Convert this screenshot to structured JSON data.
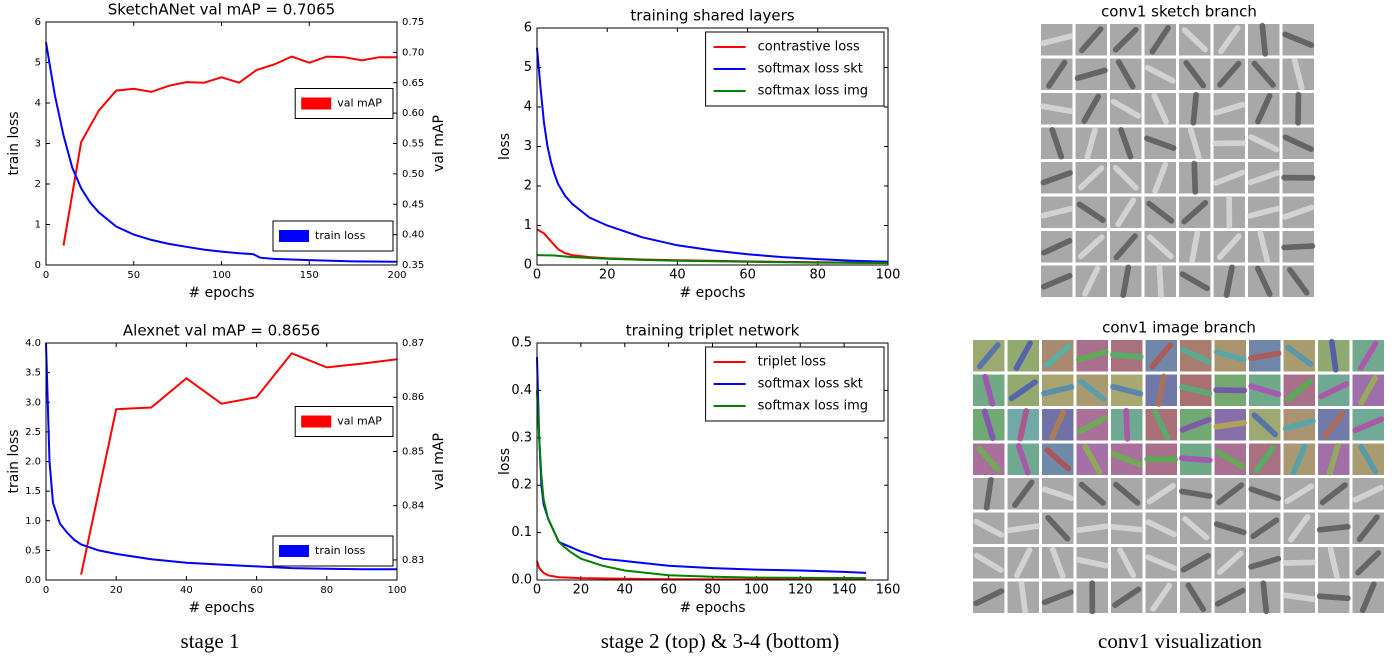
{
  "chart_data": [
    {
      "type": "line",
      "title": "SketchANet val mAP = 0.7065",
      "xlabel": "# epochs",
      "ylabel": "train loss",
      "y2label": "val mAP",
      "xlim": [
        0,
        200
      ],
      "xticks": [
        0,
        50,
        100,
        150,
        200
      ],
      "ylim": [
        0,
        6
      ],
      "yticks": [
        0,
        1,
        2,
        3,
        4,
        5,
        6
      ],
      "y2lim": [
        0.35,
        0.75
      ],
      "y2ticks": [
        0.35,
        {
          "value": 0.4,
          "label": "0.40"
        },
        0.45,
        {
          "value": 0.5,
          "label": "0.50"
        },
        0.55,
        {
          "value": 0.6,
          "label": "0.60"
        },
        0.65,
        {
          "value": 0.7,
          "label": "0.70"
        },
        0.75
      ],
      "series": [
        {
          "name": "val mAP",
          "color": "#ff0000",
          "axis": "y2",
          "legend": "center right",
          "x": [
            10,
            20,
            30,
            40,
            50,
            60,
            70,
            80,
            90,
            100,
            110,
            120,
            130,
            140,
            150,
            160,
            170,
            180,
            190,
            200
          ],
          "values": [
            0.382,
            0.552,
            0.604,
            0.637,
            0.64,
            0.635,
            0.645,
            0.651,
            0.65,
            0.659,
            0.65,
            0.671,
            0.68,
            0.693,
            0.683,
            0.693,
            0.692,
            0.687,
            0.692,
            0.692
          ]
        },
        {
          "name": "train loss",
          "color": "#0000ff",
          "legend": "lower right",
          "x": [
            0,
            5,
            10,
            15,
            20,
            25,
            30,
            40,
            50,
            60,
            70,
            80,
            90,
            100,
            110,
            118,
            122,
            130,
            150,
            175,
            200
          ],
          "values": [
            5.5,
            4.2,
            3.2,
            2.4,
            1.9,
            1.55,
            1.3,
            0.95,
            0.75,
            0.62,
            0.52,
            0.45,
            0.38,
            0.33,
            0.29,
            0.27,
            0.18,
            0.15,
            0.12,
            0.09,
            0.08
          ]
        }
      ]
    },
    {
      "type": "line",
      "title": "training shared layers",
      "xlabel": "# epochs",
      "ylabel": "loss",
      "legend": "upper right",
      "xlim": [
        0,
        100
      ],
      "xticks": [
        0,
        20,
        40,
        60,
        80,
        100
      ],
      "ylim": [
        0,
        6
      ],
      "yticks": [
        0,
        1,
        2,
        3,
        4,
        5,
        6
      ],
      "series": [
        {
          "name": "contrastive loss",
          "color": "#ff0000",
          "x": [
            0,
            2,
            4,
            6,
            8,
            10,
            15,
            20,
            30,
            40,
            60,
            80,
            100
          ],
          "values": [
            0.9,
            0.8,
            0.6,
            0.4,
            0.3,
            0.25,
            0.2,
            0.17,
            0.14,
            0.12,
            0.09,
            0.07,
            0.05
          ]
        },
        {
          "name": "softmax loss skt",
          "color": "#0000ff",
          "x": [
            0,
            1,
            2,
            3,
            4,
            5,
            6,
            8,
            10,
            15,
            20,
            25,
            30,
            40,
            50,
            60,
            70,
            80,
            90,
            100
          ],
          "values": [
            5.5,
            4.5,
            3.6,
            3.0,
            2.6,
            2.3,
            2.05,
            1.75,
            1.55,
            1.2,
            1.0,
            0.85,
            0.7,
            0.5,
            0.37,
            0.27,
            0.2,
            0.15,
            0.11,
            0.08
          ]
        },
        {
          "name": "softmax loss img",
          "color": "#008000",
          "x": [
            0,
            5,
            10,
            20,
            30,
            40,
            60,
            80,
            100
          ],
          "values": [
            0.25,
            0.24,
            0.2,
            0.16,
            0.13,
            0.11,
            0.08,
            0.06,
            0.05
          ]
        }
      ]
    },
    {
      "type": "line",
      "title": "Alexnet val mAP = 0.8656",
      "xlabel": "# epochs",
      "ylabel": "train loss",
      "y2label": "val mAP",
      "xlim": [
        0,
        100
      ],
      "xticks": [
        0,
        20,
        40,
        60,
        80,
        100
      ],
      "ylim": [
        0,
        4
      ],
      "yticks": [
        {
          "value": 0,
          "label": "0.0"
        },
        0.5,
        {
          "value": 1,
          "label": "1.0"
        },
        1.5,
        {
          "value": 2,
          "label": "2.0"
        },
        2.5,
        {
          "value": 3,
          "label": "3.0"
        },
        3.5,
        {
          "value": 4,
          "label": "4.0"
        }
      ],
      "y2lim": [
        0.8263,
        0.87
      ],
      "y2ticks": [
        0.83,
        0.84,
        0.85,
        0.86,
        0.87
      ],
      "series": [
        {
          "name": "val mAP",
          "color": "#ff0000",
          "axis": "y2",
          "legend": "center right",
          "x": [
            10,
            20,
            30,
            40,
            50,
            60,
            70,
            80,
            90,
            100
          ],
          "values": [
            0.8273,
            0.8578,
            0.8581,
            0.8635,
            0.8588,
            0.86,
            0.8681,
            0.8655,
            0.8662,
            0.867
          ]
        },
        {
          "name": "train loss",
          "color": "#0000ff",
          "legend": "lower right",
          "x": [
            0,
            1,
            2,
            4,
            6,
            8,
            10,
            15,
            20,
            30,
            40,
            50,
            60,
            70,
            80,
            90,
            100
          ],
          "values": [
            4.0,
            2.0,
            1.3,
            0.95,
            0.8,
            0.68,
            0.6,
            0.5,
            0.44,
            0.35,
            0.29,
            0.26,
            0.23,
            0.2,
            0.19,
            0.18,
            0.18
          ]
        }
      ]
    },
    {
      "type": "line",
      "title": "training triplet network",
      "xlabel": "# epochs",
      "ylabel": "loss",
      "legend": "upper right",
      "xlim": [
        0,
        160
      ],
      "xticks": [
        0,
        20,
        40,
        60,
        80,
        100,
        120,
        140,
        160
      ],
      "ylim": [
        0,
        0.5
      ],
      "yticks": [
        {
          "value": 0,
          "label": "0.0"
        },
        0.1,
        0.2,
        0.3,
        0.4,
        0.5
      ],
      "series": [
        {
          "name": "triplet loss",
          "color": "#ff0000",
          "x": [
            0,
            1,
            3,
            5,
            10,
            20,
            50,
            100,
            150
          ],
          "values": [
            0.04,
            0.025,
            0.015,
            0.01,
            0.006,
            0.004,
            0.002,
            0.001,
            0.001
          ]
        },
        {
          "name": "softmax loss skt",
          "color": "#0000ff",
          "x": [
            0,
            1,
            2,
            3,
            5,
            8,
            10,
            15,
            20,
            30,
            40,
            60,
            80,
            100,
            120,
            140,
            150
          ],
          "values": [
            0.47,
            0.3,
            0.2,
            0.16,
            0.13,
            0.1,
            0.08,
            0.07,
            0.06,
            0.045,
            0.04,
            0.03,
            0.025,
            0.022,
            0.02,
            0.017,
            0.015
          ]
        },
        {
          "name": "softmax loss img",
          "color": "#008000",
          "x": [
            0,
            1,
            2,
            3,
            5,
            8,
            10,
            15,
            20,
            30,
            40,
            60,
            80,
            100,
            150
          ],
          "values": [
            0.4,
            0.3,
            0.22,
            0.17,
            0.13,
            0.1,
            0.08,
            0.06,
            0.045,
            0.03,
            0.02,
            0.01,
            0.007,
            0.005,
            0.004
          ]
        }
      ]
    }
  ],
  "filter_grids": [
    {
      "title": "conv1 sketch branch"
    },
    {
      "title": "conv1 image branch"
    }
  ],
  "captions": [
    "stage 1",
    "stage 2 (top) & 3-4 (bottom)",
    "conv1 visualization"
  ]
}
